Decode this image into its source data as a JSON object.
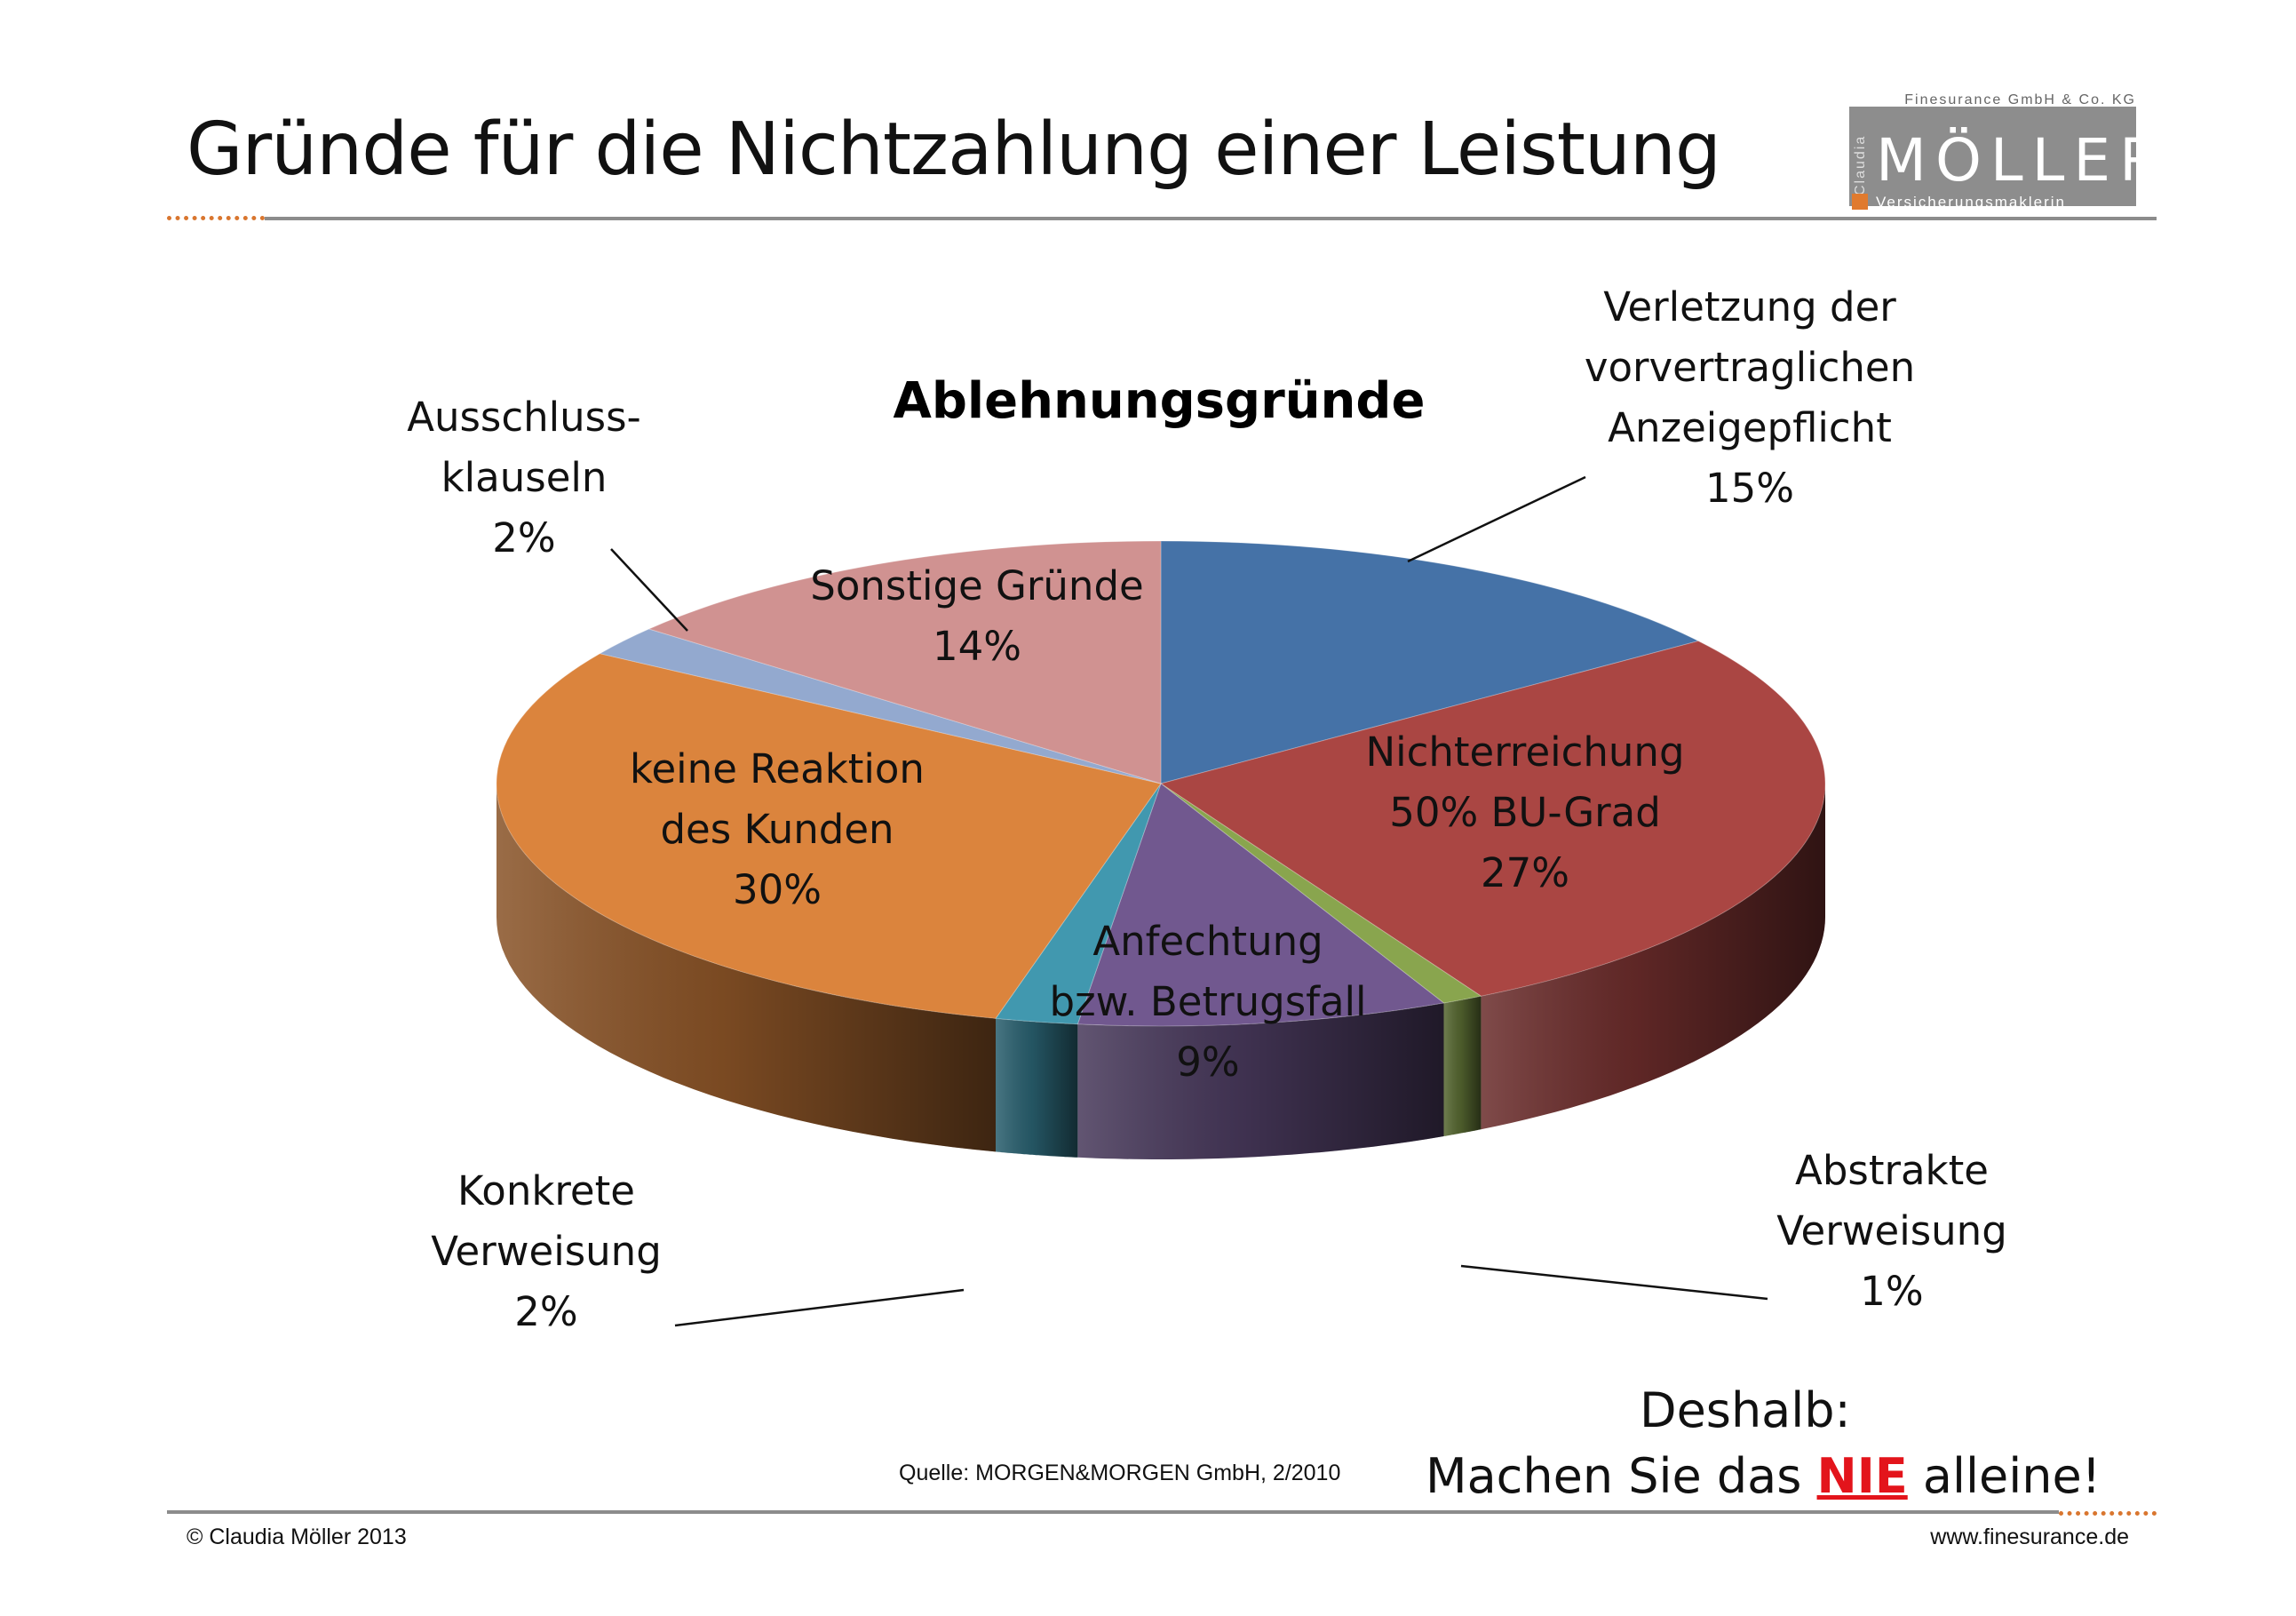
{
  "page": {
    "title": "Gründe für die Nichtzahlung einer Leistung"
  },
  "logo": {
    "top": "Finesurance GmbH & Co. KG",
    "side": "Claudia",
    "main": "MÖLLER",
    "sub": "Versicherungsmaklerin",
    "accent_color": "#e07a2e"
  },
  "chart_data": {
    "type": "pie",
    "style": "3d",
    "title": "Ablehnungsgründe",
    "slices": [
      {
        "label": [
          "Verletzung der",
          "vorvertraglichen",
          "Anzeigepflicht",
          "15%"
        ],
        "value": 15,
        "color": "#4572a7"
      },
      {
        "label": [
          "Nichterreichung",
          "50% BU-Grad",
          "27%"
        ],
        "value": 27,
        "color": "#aa4643"
      },
      {
        "label": [
          "Abstrakte",
          "Verweisung",
          "1%"
        ],
        "value": 1,
        "color": "#89a54e"
      },
      {
        "label": [
          "Anfechtung",
          "bzw. Betrugsfall",
          "9%"
        ],
        "value": 9,
        "color": "#71588f"
      },
      {
        "label": [
          "Konkrete",
          "Verweisung",
          "2%"
        ],
        "value": 2,
        "color": "#4198af"
      },
      {
        "label": [
          "keine Reaktion",
          "des Kunden",
          "30%"
        ],
        "value": 30,
        "color": "#db843d"
      },
      {
        "label": [
          "Ausschluss-",
          "klauseln",
          "2%"
        ],
        "value": 2,
        "color": "#93a9cf"
      },
      {
        "label": [
          "Sonstige Gründe",
          "14%"
        ],
        "value": 14,
        "color": "#d09291"
      }
    ]
  },
  "source": "Quelle: MORGEN&MORGEN GmbH, 2/2010",
  "callout": {
    "line1": "Deshalb:",
    "prefix": "Machen Sie das ",
    "emphasis": "NIE",
    "suffix": " alleine!"
  },
  "footer": {
    "copyright": "© Claudia Möller 2013",
    "website": "www.finesurance.de"
  }
}
